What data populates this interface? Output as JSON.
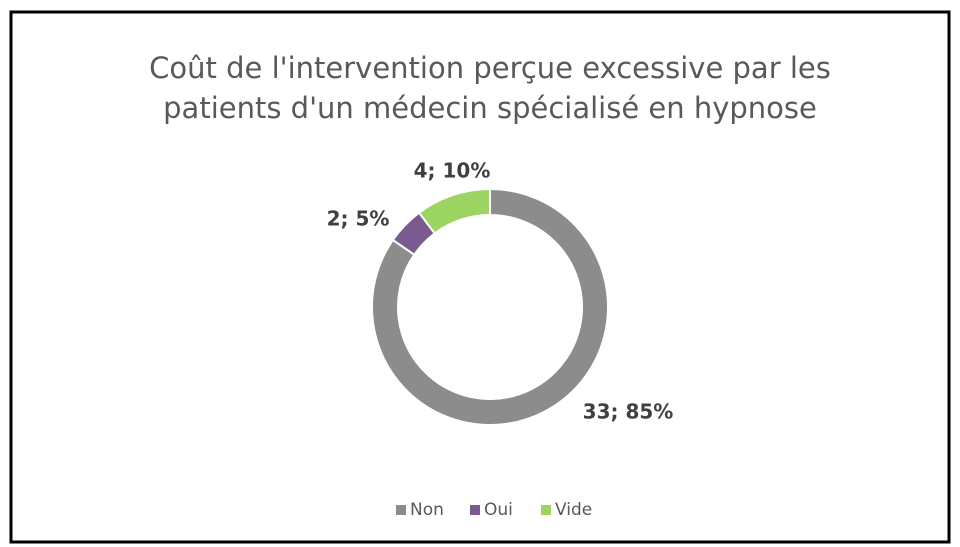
{
  "chart_data": {
    "type": "donut",
    "title": [
      "Coût de l'intervention perçue excessive par les",
      "patients d'un médecin spécialisé en hypnose"
    ],
    "categories": [
      "Non",
      "Oui",
      "Vide"
    ],
    "values": [
      33,
      2,
      4
    ],
    "value_labels": [
      "33; 85%",
      "2; 5%",
      "4; 10%"
    ],
    "colors": [
      "#8c8c8c",
      "#7b5b8f",
      "#9dd563"
    ],
    "legend": "bottom"
  }
}
